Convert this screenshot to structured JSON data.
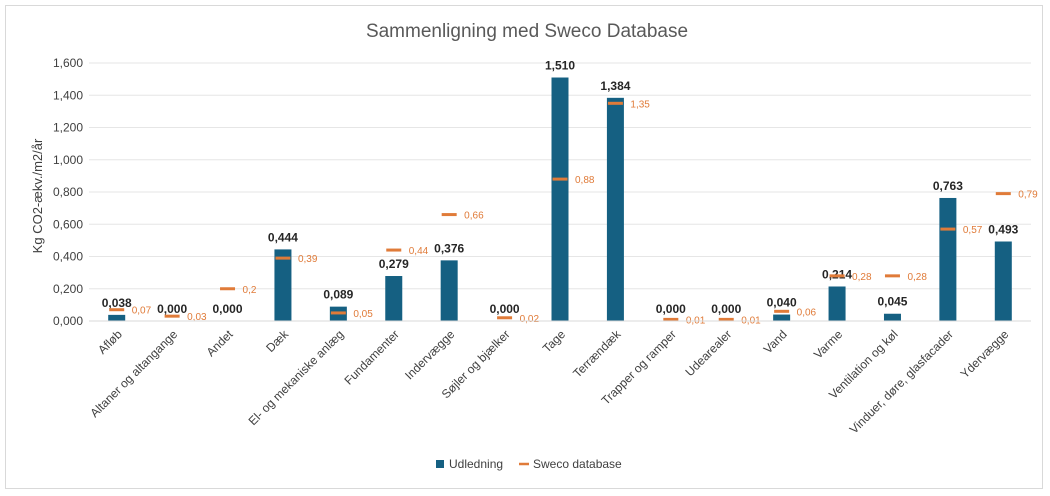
{
  "chart_data": {
    "type": "bar",
    "title": "Sammenligning med Sweco Database",
    "ylabel": "Kg CO2-ækv./m2/år",
    "xlabel": "",
    "ylim": [
      0,
      1.6
    ],
    "yticks": [
      0,
      0.2,
      0.4,
      0.6,
      0.8,
      1.0,
      1.2,
      1.4,
      1.6
    ],
    "ytick_labels": [
      "0,000",
      "0,200",
      "0,400",
      "0,600",
      "0,800",
      "1,000",
      "1,200",
      "1,400",
      "1,600"
    ],
    "grid": true,
    "legend_position": "bottom",
    "categories": [
      "Afløb",
      "Altaner og altangange",
      "Andet",
      "Dæk",
      "El- og mekaniske anlæg",
      "Fundamenter",
      "Indervægge",
      "Søjler og bjælker",
      "Tage",
      "Terrændæk",
      "Trapper og ramper",
      "Udearealer",
      "Vand",
      "Varme",
      "Ventilation og køl",
      "Vinduer, døre, glasfacader",
      "Ydervægge"
    ],
    "series": [
      {
        "name": "Udledning",
        "kind": "bar",
        "color": "#156082",
        "values": [
          0.038,
          0.0,
          0.0,
          0.444,
          0.089,
          0.279,
          0.376,
          0.0,
          1.51,
          1.384,
          0.0,
          0.0,
          0.04,
          0.214,
          0.045,
          0.763,
          0.493
        ],
        "labels": [
          "0,038",
          "0,000",
          "0,000",
          "0,444",
          "0,089",
          "0,279",
          "0,376",
          "0,000",
          "1,510",
          "1,384",
          "0,000",
          "0,000",
          "0,040",
          "0,214",
          "0,045",
          "0,763",
          "0,493"
        ]
      },
      {
        "name": "Sweco database",
        "kind": "marker",
        "color": "#e07b39",
        "values": [
          0.07,
          0.03,
          0.2,
          0.39,
          0.05,
          0.44,
          0.66,
          0.02,
          0.88,
          1.35,
          0.01,
          0.01,
          0.06,
          0.28,
          0.28,
          0.57,
          0.79
        ],
        "labels": [
          "0,07",
          "0,03",
          "0,2",
          "0,39",
          "0,05",
          "0,44",
          "0,66",
          "0,02",
          "0,88",
          "1,35",
          "0,01",
          "0,01",
          "0,06",
          "0,28",
          "0,28",
          "0,57",
          "0,79"
        ]
      }
    ]
  }
}
